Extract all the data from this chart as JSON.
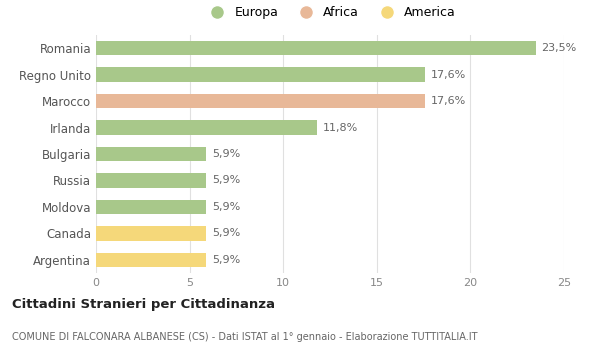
{
  "categories": [
    "Romania",
    "Regno Unito",
    "Marocco",
    "Irlanda",
    "Bulgaria",
    "Russia",
    "Moldova",
    "Canada",
    "Argentina"
  ],
  "values": [
    23.5,
    17.6,
    17.6,
    11.8,
    5.9,
    5.9,
    5.9,
    5.9,
    5.9
  ],
  "colors": [
    "#a8c88a",
    "#a8c88a",
    "#e8b898",
    "#a8c88a",
    "#a8c88a",
    "#a8c88a",
    "#a8c88a",
    "#f5d87a",
    "#f5d87a"
  ],
  "labels": [
    "23,5%",
    "17,6%",
    "17,6%",
    "11,8%",
    "5,9%",
    "5,9%",
    "5,9%",
    "5,9%",
    "5,9%"
  ],
  "legend": [
    {
      "label": "Europa",
      "color": "#a8c88a"
    },
    {
      "label": "Africa",
      "color": "#e8b898"
    },
    {
      "label": "America",
      "color": "#f5d87a"
    }
  ],
  "xlim": [
    0,
    25
  ],
  "xticks": [
    0,
    5,
    10,
    15,
    20,
    25
  ],
  "title": "Cittadini Stranieri per Cittadinanza",
  "subtitle": "COMUNE DI FALCONARA ALBANESE (CS) - Dati ISTAT al 1° gennaio - Elaborazione TUTTITALIA.IT",
  "bg_color": "#ffffff",
  "grid_color": "#e0e0e0",
  "bar_height": 0.55,
  "label_fontsize": 8,
  "ytick_fontsize": 8.5,
  "xtick_fontsize": 8
}
